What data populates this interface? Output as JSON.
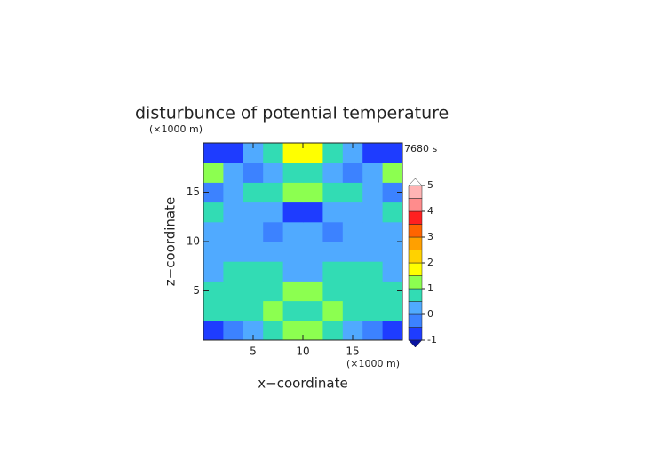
{
  "chart_data": {
    "type": "contour",
    "title": "disturbunce of potential temperature",
    "x_label": "x−coordinate",
    "y_label": "z−coordinate",
    "x_unit": "(×1000 m)",
    "y_unit": "(×1000 m)",
    "time_label": "7680 s",
    "x": [
      1,
      3,
      5,
      7,
      9,
      11,
      13,
      15,
      17,
      19
    ],
    "y": [
      1,
      3,
      5,
      7,
      9,
      11,
      13,
      15,
      17,
      19
    ],
    "z": [
      [
        -0.6,
        -0.3,
        0.2,
        0.6,
        1.2,
        1.2,
        0.6,
        0.2,
        -0.3,
        -0.6
      ],
      [
        0.7,
        0.8,
        0.7,
        1.1,
        0.8,
        0.8,
        1.1,
        0.7,
        0.8,
        0.7
      ],
      [
        0.6,
        0.7,
        0.8,
        0.7,
        1.3,
        1.3,
        0.7,
        0.8,
        0.7,
        0.6
      ],
      [
        0.3,
        0.6,
        0.7,
        0.6,
        0.4,
        0.4,
        0.6,
        0.7,
        0.6,
        0.3
      ],
      [
        0.2,
        0.2,
        0.3,
        0.2,
        0.1,
        0.1,
        0.2,
        0.3,
        0.2,
        0.2
      ],
      [
        0.3,
        0.3,
        0.2,
        -0.3,
        0.1,
        0.1,
        -0.3,
        0.2,
        0.3,
        0.3
      ],
      [
        0.6,
        0.3,
        0.2,
        0.3,
        -0.6,
        -0.6,
        0.3,
        0.2,
        0.3,
        0.6
      ],
      [
        -0.3,
        0.3,
        0.6,
        0.7,
        1.1,
        1.1,
        0.7,
        0.6,
        0.3,
        -0.3
      ],
      [
        1.2,
        0.3,
        -0.3,
        0.2,
        0.6,
        0.6,
        0.2,
        -0.3,
        0.3,
        1.2
      ],
      [
        -0.7,
        -0.6,
        0.2,
        0.7,
        1.8,
        1.8,
        0.7,
        0.2,
        -0.6,
        -0.7
      ]
    ],
    "xlim": [
      0,
      20
    ],
    "ylim": [
      0,
      20
    ],
    "xticks": [
      5,
      10,
      15
    ],
    "yticks": [
      5,
      10,
      15
    ],
    "colorbar": {
      "levels": [
        -1,
        -0.5,
        0,
        0.5,
        1,
        1.5,
        2,
        2.5,
        3,
        3.5,
        4,
        4.5,
        5
      ],
      "colors": [
        "#0a14a0",
        "#1e3cff",
        "#3c82ff",
        "#50aaff",
        "#32dcb4",
        "#8cff50",
        "#ffff00",
        "#ffd200",
        "#ffa000",
        "#ff6400",
        "#ff2020",
        "#ff8c8c",
        "#ffb4b4",
        "#ffffff"
      ],
      "ticks": [
        -1,
        0,
        1,
        2,
        3,
        4,
        5
      ]
    }
  }
}
